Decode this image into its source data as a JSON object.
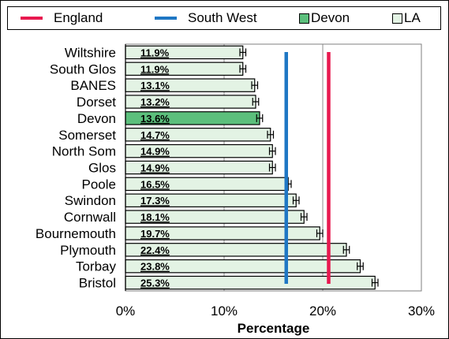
{
  "legend": {
    "england": {
      "label": "England",
      "color": "#e8194f"
    },
    "southwest": {
      "label": "South West",
      "color": "#1f77c4"
    },
    "devon": {
      "label": "Devon",
      "color": "#5cbf7c"
    },
    "la": {
      "label": "LA",
      "color": "#e3f3e4"
    }
  },
  "chart_data": {
    "type": "bar",
    "orientation": "horizontal",
    "xlabel": "Percentage",
    "xlim": [
      0,
      30
    ],
    "xticks": [
      "0%",
      "10%",
      "20%",
      "30%"
    ],
    "xtick_values": [
      0,
      10,
      20,
      30
    ],
    "categories": [
      "Wiltshire",
      "South Glos",
      "BANES",
      "Dorset",
      "Devon",
      "Somerset",
      "North Som",
      "Glos",
      "Poole",
      "Swindon",
      "Cornwall",
      "Bournemouth",
      "Plymouth",
      "Torbay",
      "Bristol"
    ],
    "values": [
      11.9,
      11.9,
      13.1,
      13.2,
      13.6,
      14.7,
      14.9,
      14.9,
      16.5,
      17.3,
      18.1,
      19.7,
      22.4,
      23.8,
      25.3
    ],
    "value_labels": [
      "11.9%",
      "11.9%",
      "13.1%",
      "13.2%",
      "13.6%",
      "14.7%",
      "14.9%",
      "14.9%",
      "16.5%",
      "17.3%",
      "18.1%",
      "19.7%",
      "22.4%",
      "23.8%",
      "25.3%"
    ],
    "highlight_category": "Devon",
    "reference_lines": [
      {
        "name": "England",
        "value": 20.6,
        "color": "#e8194f"
      },
      {
        "name": "South West",
        "value": 16.3,
        "color": "#1f77c4"
      }
    ],
    "error_bar": 0.3,
    "grid": "vertical",
    "legend_position": "top"
  }
}
